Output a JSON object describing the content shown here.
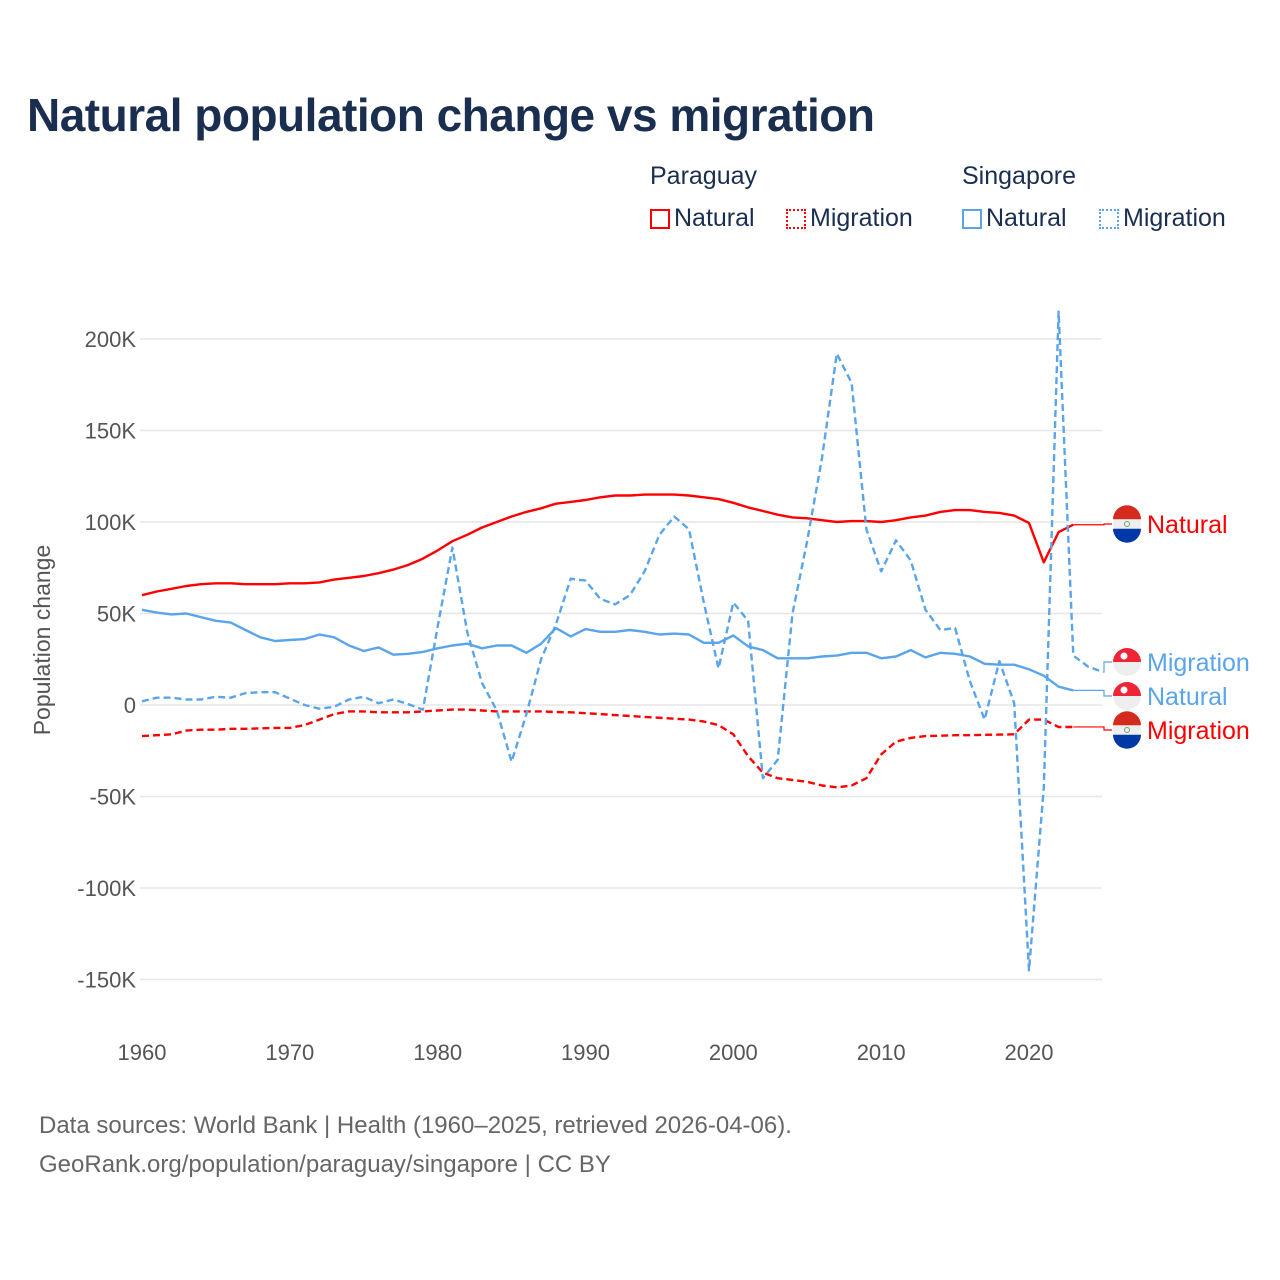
{
  "title": "Natural population change vs migration",
  "legend": {
    "groups": [
      {
        "name": "Paraguay",
        "items": [
          "Natural",
          "Migration"
        ]
      },
      {
        "name": "Singapore",
        "items": [
          "Natural",
          "Migration"
        ]
      }
    ]
  },
  "colors": {
    "paraguay": "#ff0000",
    "singapore": "#5aa5ea",
    "title": "#1a2e4f"
  },
  "source": {
    "line1": "Data sources: World Bank | Health (1960–2025, retrieved 2026-04-06).",
    "line2": "GeoRank.org/population/paraguay/singapore | CC BY"
  },
  "chart_data": {
    "type": "line",
    "title": "Natural population change vs migration",
    "xlabel": "",
    "ylabel": "Population change",
    "xlim": [
      1960,
      2025
    ],
    "ylim": [
      -170000,
      225000
    ],
    "x_ticks": [
      1960,
      1970,
      1980,
      1990,
      2000,
      2010,
      2020
    ],
    "y_ticks": [
      {
        "v": 200000,
        "l": "200K"
      },
      {
        "v": 150000,
        "l": "150K"
      },
      {
        "v": 100000,
        "l": "100K"
      },
      {
        "v": 50000,
        "l": "50K"
      },
      {
        "v": 0,
        "l": "0"
      },
      {
        "v": -50000,
        "l": "-50K"
      },
      {
        "v": -100000,
        "l": "-100K"
      },
      {
        "v": -150000,
        "l": "-150K"
      }
    ],
    "x_start": 1960,
    "units": "thousands",
    "series": [
      {
        "name": "Paraguay Natural",
        "label": "Natural",
        "country": "Paraguay",
        "dashed": false,
        "color": "#ff0000",
        "values": [
          60,
          62,
          63.5,
          65,
          66,
          66.5,
          66.5,
          66,
          66,
          66,
          66.5,
          66.5,
          67,
          68.5,
          69.5,
          70.5,
          72,
          74,
          76.5,
          80,
          84.5,
          89.5,
          93,
          97,
          100,
          103,
          105.5,
          107.5,
          110,
          111,
          112,
          113.5,
          114.5,
          114.5,
          115,
          115,
          115,
          114.5,
          113.5,
          112.5,
          110.5,
          108,
          106,
          104,
          102.5,
          102,
          101,
          100,
          100.5,
          100.5,
          100,
          101,
          102.5,
          103.5,
          105.5,
          106.5,
          106.5,
          105.5,
          105,
          103.5,
          99.5,
          78,
          94.5,
          98.5
        ]
      },
      {
        "name": "Paraguay Migration",
        "label": "Migration",
        "country": "Paraguay",
        "dashed": true,
        "color": "#ff0000",
        "values": [
          -17,
          -16.5,
          -16,
          -14,
          -13.5,
          -13.5,
          -13,
          -13,
          -12.8,
          -12.5,
          -12.5,
          -11,
          -8,
          -5,
          -3.5,
          -3.5,
          -4,
          -4,
          -4,
          -3.5,
          -3,
          -2.5,
          -2.5,
          -3,
          -3.5,
          -3.5,
          -3.5,
          -3.5,
          -3.8,
          -4,
          -4.5,
          -5,
          -5.5,
          -6,
          -6.5,
          -7,
          -7.5,
          -8,
          -9,
          -11,
          -16,
          -28,
          -37,
          -40,
          -41,
          -42,
          -44,
          -45,
          -44,
          -40,
          -27,
          -20,
          -18,
          -17,
          -16.8,
          -16.5,
          -16.5,
          -16.3,
          -16.2,
          -16,
          -8,
          -8,
          -12,
          -12
        ]
      },
      {
        "name": "Singapore Natural",
        "label": "Natural",
        "country": "Singapore",
        "dashed": false,
        "color": "#5aa5ea",
        "values": [
          52,
          50.5,
          49.5,
          50,
          48,
          46,
          45,
          41,
          37,
          35,
          35.5,
          36,
          38.5,
          37,
          32.5,
          29.5,
          31.5,
          27.5,
          28,
          29,
          31,
          32.5,
          33.5,
          31,
          32.5,
          32.5,
          28.5,
          33.5,
          42,
          37.5,
          41.5,
          40,
          40,
          41,
          40,
          38.5,
          39,
          38.5,
          34,
          34,
          38,
          32,
          30,
          25.5,
          25.5,
          25.5,
          26.5,
          27,
          28.5,
          28.5,
          25.5,
          26.5,
          30,
          26,
          28.5,
          28,
          26.5,
          22.5,
          22,
          22,
          19.5,
          16,
          10,
          8
        ]
      },
      {
        "name": "Singapore Migration",
        "label": "Migration",
        "country": "Singapore",
        "dashed": true,
        "color": "#5aa5ea",
        "values": [
          2,
          4,
          4,
          3,
          3,
          4.5,
          4,
          6.5,
          7,
          7,
          3.5,
          0,
          -2,
          -1,
          3,
          4.5,
          1,
          3,
          0.5,
          -2.5,
          43,
          86,
          40,
          12,
          -3,
          -31,
          -5,
          25,
          44,
          69,
          68,
          58,
          55,
          60,
          73,
          93,
          103,
          96,
          56,
          20,
          56,
          46,
          -40,
          -30,
          50,
          90,
          135,
          192,
          176,
          96,
          73,
          90,
          79,
          52,
          41,
          42,
          13,
          -8,
          24,
          1,
          -145,
          -45,
          215,
          27,
          21,
          18
        ]
      }
    ]
  }
}
